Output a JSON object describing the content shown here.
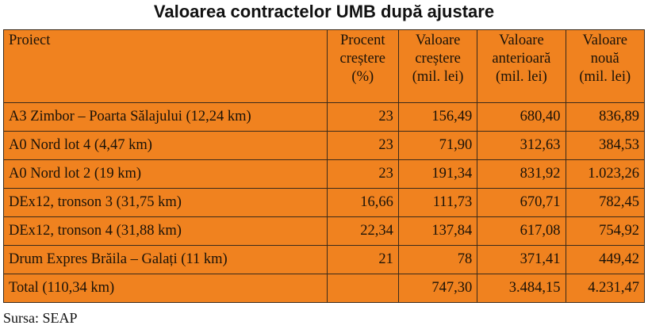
{
  "title": "Valoarea contractelor UMB după ajustare",
  "headers": [
    "Proiect",
    "Procent creștere (%)",
    "Valoare creștere (mil. lei)",
    "Valoare anterioară (mil. lei)",
    "Valoare nouă (mil. lei)"
  ],
  "header_lines": [
    [
      "Proiect"
    ],
    [
      "Procent",
      "creștere",
      "(%)"
    ],
    [
      "Valoare",
      "creștere",
      "(mil. lei)"
    ],
    [
      "Valoare",
      "anterioară",
      "(mil. lei)"
    ],
    [
      "Valoare",
      "nouă",
      "(mil. lei)"
    ]
  ],
  "rows": [
    [
      "A3 Zimbor – Poarta Sălajului (12,24 km)",
      "23",
      "156,49",
      "680,40",
      "836,89"
    ],
    [
      "A0 Nord lot 4 (4,47 km)",
      "23",
      "71,90",
      "312,63",
      "384,53"
    ],
    [
      "A0 Nord lot 2 (19 km)",
      "23",
      "191,34",
      "831,92",
      "1.023,26"
    ],
    [
      "DEx12, tronson 3 (31,75 km)",
      "16,66",
      "111,73",
      "670,71",
      "782,45"
    ],
    [
      "DEx12, tronson 4 (31,88 km)",
      "22,34",
      "137,84",
      "617,08",
      "754,92"
    ],
    [
      "Drum Expres Brăila – Galați (11 km)",
      "21",
      "78",
      "371,41",
      "449,42"
    ],
    [
      "Total (110,34 km)",
      "",
      "747,30",
      "3.484,15",
      "4.231,47"
    ]
  ],
  "source": "Sursa: SEAP",
  "colors": {
    "table_bg": "#F0821F",
    "border": "#3a2a1a"
  }
}
